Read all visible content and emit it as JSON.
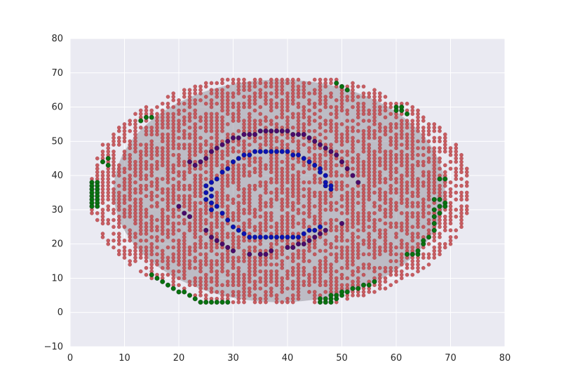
{
  "chart_data": {
    "type": "scatter",
    "title": "",
    "xlabel": "",
    "ylabel": "",
    "xlim": [
      0,
      80
    ],
    "ylim": [
      -10,
      80
    ],
    "x_ticks": [
      0,
      10,
      20,
      30,
      40,
      50,
      60,
      70,
      80
    ],
    "y_ticks": [
      -10,
      0,
      10,
      20,
      30,
      40,
      50,
      60,
      70,
      80
    ],
    "x_tick_labels": [
      "0",
      "10",
      "20",
      "30",
      "40",
      "50",
      "60",
      "70",
      "80"
    ],
    "y_tick_labels": [
      "−10",
      "0",
      "10",
      "20",
      "30",
      "40",
      "50",
      "60",
      "70",
      "80"
    ],
    "grid": true,
    "colors": {
      "background": "#eaeaf2",
      "ellipse": "#9e9ca6",
      "red": "#c44e52",
      "green": "#087210",
      "blue": "#0b12b3",
      "purple": "#4a0a6b"
    },
    "ellipse": {
      "center": [
        38.5,
        35.5
      ],
      "width": 61,
      "height": 65
    },
    "series": [
      {
        "color": "green",
        "points": [
          [
            4,
            38
          ],
          [
            4,
            37
          ],
          [
            4,
            36
          ],
          [
            4,
            35
          ],
          [
            4,
            34
          ],
          [
            4,
            33
          ],
          [
            4,
            32
          ],
          [
            4,
            31
          ],
          [
            5,
            38
          ],
          [
            5,
            37
          ],
          [
            5,
            36
          ],
          [
            5,
            35
          ],
          [
            5,
            34
          ],
          [
            5,
            33
          ],
          [
            5,
            32
          ],
          [
            5,
            31
          ],
          [
            6,
            44
          ],
          [
            7,
            45
          ],
          [
            7,
            43
          ],
          [
            13,
            56
          ],
          [
            14,
            57
          ],
          [
            15,
            57
          ],
          [
            15,
            11
          ],
          [
            16,
            10
          ],
          [
            17,
            9
          ],
          [
            18,
            8
          ],
          [
            19,
            7
          ],
          [
            20,
            6
          ],
          [
            21,
            6
          ],
          [
            22,
            5
          ],
          [
            23,
            4
          ],
          [
            24,
            3
          ],
          [
            25,
            3
          ],
          [
            26,
            3
          ],
          [
            27,
            3
          ],
          [
            28,
            3
          ],
          [
            29,
            3
          ],
          [
            46,
            3
          ],
          [
            46,
            4
          ],
          [
            47,
            3
          ],
          [
            47,
            4
          ],
          [
            48,
            3
          ],
          [
            48,
            4
          ],
          [
            48,
            5
          ],
          [
            49,
            4
          ],
          [
            49,
            5
          ],
          [
            50,
            5
          ],
          [
            50,
            6
          ],
          [
            51,
            6
          ],
          [
            52,
            7
          ],
          [
            53,
            7
          ],
          [
            54,
            8
          ],
          [
            55,
            8
          ],
          [
            56,
            9
          ],
          [
            49,
            67
          ],
          [
            50,
            66
          ],
          [
            51,
            65
          ],
          [
            60,
            60
          ],
          [
            60,
            59
          ],
          [
            61,
            59
          ],
          [
            61,
            60
          ],
          [
            62,
            58
          ],
          [
            62,
            17
          ],
          [
            63,
            17
          ],
          [
            64,
            17
          ],
          [
            64,
            18
          ],
          [
            65,
            20
          ],
          [
            65,
            21
          ],
          [
            66,
            22
          ],
          [
            67,
            24
          ],
          [
            67,
            26
          ],
          [
            67,
            28
          ],
          [
            67,
            30
          ],
          [
            67,
            33
          ],
          [
            68,
            29
          ],
          [
            68,
            31
          ],
          [
            68,
            33
          ],
          [
            68,
            39
          ],
          [
            69,
            39
          ],
          [
            69,
            32
          ],
          [
            69,
            31
          ]
        ]
      },
      {
        "color": "blue",
        "points": [
          [
            25,
            37
          ],
          [
            25,
            35
          ],
          [
            25,
            33
          ],
          [
            26,
            38
          ],
          [
            26,
            36
          ],
          [
            26,
            34
          ],
          [
            26,
            32
          ],
          [
            26,
            30
          ],
          [
            27,
            39
          ],
          [
            27,
            31
          ],
          [
            28,
            41
          ],
          [
            28,
            29
          ],
          [
            29,
            42
          ],
          [
            29,
            27
          ],
          [
            30,
            44
          ],
          [
            30,
            25
          ],
          [
            31,
            45
          ],
          [
            31,
            24
          ],
          [
            32,
            46
          ],
          [
            32,
            23
          ],
          [
            33,
            46
          ],
          [
            33,
            22
          ],
          [
            34,
            47
          ],
          [
            34,
            22
          ],
          [
            35,
            47
          ],
          [
            35,
            22
          ],
          [
            36,
            47
          ],
          [
            36,
            22
          ],
          [
            37,
            47
          ],
          [
            37,
            22
          ],
          [
            38,
            47
          ],
          [
            38,
            22
          ],
          [
            39,
            47
          ],
          [
            39,
            22
          ],
          [
            40,
            47
          ],
          [
            40,
            22
          ],
          [
            41,
            46
          ],
          [
            41,
            22
          ],
          [
            42,
            46
          ],
          [
            42,
            22
          ],
          [
            43,
            45
          ],
          [
            43,
            23
          ],
          [
            44,
            44
          ],
          [
            44,
            24
          ],
          [
            45,
            43
          ],
          [
            45,
            24
          ],
          [
            46,
            42
          ],
          [
            46,
            25
          ],
          [
            46,
            41
          ],
          [
            47,
            40
          ],
          [
            47,
            38
          ],
          [
            47,
            37
          ],
          [
            48,
            36
          ],
          [
            48,
            37
          ]
        ]
      },
      {
        "color": "purple",
        "points": [
          [
            22,
            44
          ],
          [
            23,
            43
          ],
          [
            24,
            44
          ],
          [
            25,
            45
          ],
          [
            26,
            47
          ],
          [
            27,
            48
          ],
          [
            28,
            49
          ],
          [
            29,
            50
          ],
          [
            30,
            51
          ],
          [
            31,
            51
          ],
          [
            32,
            52
          ],
          [
            33,
            52
          ],
          [
            34,
            52
          ],
          [
            35,
            53
          ],
          [
            36,
            53
          ],
          [
            37,
            53
          ],
          [
            38,
            53
          ],
          [
            39,
            53
          ],
          [
            40,
            53
          ],
          [
            41,
            52
          ],
          [
            42,
            52
          ],
          [
            43,
            52
          ],
          [
            44,
            51
          ],
          [
            45,
            50
          ],
          [
            46,
            49
          ],
          [
            47,
            48
          ],
          [
            48,
            47
          ],
          [
            49,
            46
          ],
          [
            50,
            44
          ],
          [
            51,
            42
          ],
          [
            52,
            40
          ],
          [
            53,
            38
          ],
          [
            50,
            26
          ],
          [
            20,
            31
          ],
          [
            21,
            29
          ],
          [
            22,
            28
          ],
          [
            25,
            24
          ],
          [
            26,
            22
          ],
          [
            27,
            21
          ],
          [
            28,
            20
          ],
          [
            29,
            19
          ],
          [
            30,
            18
          ],
          [
            33,
            17
          ],
          [
            35,
            17
          ],
          [
            36,
            17
          ],
          [
            37,
            18
          ],
          [
            40,
            19
          ],
          [
            41,
            19
          ],
          [
            42,
            20
          ],
          [
            43,
            20
          ],
          [
            44,
            21
          ],
          [
            45,
            22
          ],
          [
            46,
            23
          ],
          [
            47,
            24
          ]
        ]
      }
    ]
  }
}
